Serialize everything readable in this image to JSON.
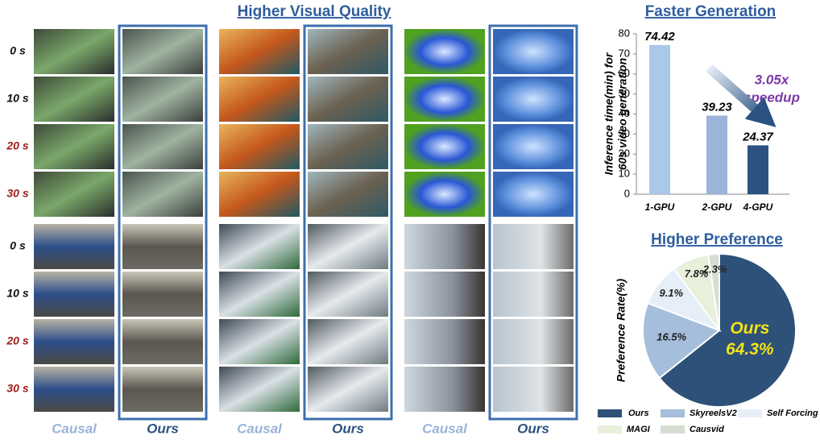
{
  "gallery": {
    "title": "Higher Visual Quality",
    "row_labels": [
      "0 s",
      "10 s",
      "20 s",
      "30 s",
      "0 s",
      "10 s",
      "20 s",
      "30 s"
    ],
    "column_labels": [
      "Causal",
      "Ours",
      "Causal",
      "Ours",
      "Causal",
      "Ours"
    ]
  },
  "chart_data": [
    {
      "type": "bar",
      "title": "Faster Generation",
      "ylabel": [
        "Inference time(min) for",
        "60s video generation"
      ],
      "categories": [
        "1-GPU",
        "2-GPU",
        "4-GPU"
      ],
      "values": [
        74.42,
        39.23,
        24.37
      ],
      "colors": [
        "#a9c8ea",
        "#9db4da",
        "#2b5280"
      ],
      "ylim": [
        0,
        80
      ],
      "yticks": [
        0,
        10,
        20,
        30,
        40,
        50,
        60,
        70,
        80
      ],
      "annotation": [
        "3.05x",
        "speedup"
      ]
    },
    {
      "type": "pie",
      "title": "Higher Preference",
      "ylabel": "Preference Rate(%)",
      "categories": [
        "Ours",
        "SkyreelsV2",
        "Self Forcing",
        "MAGI",
        "Causvid"
      ],
      "values": [
        64.3,
        16.5,
        9.1,
        7.8,
        2.3
      ],
      "value_labels": [
        "64.3%",
        "16.5%",
        "9.1%",
        "7.8%",
        "2.3%"
      ],
      "colors": [
        "#2d5178",
        "#a4bedb",
        "#e6eef8",
        "#e8f0dc",
        "#d8ddd2"
      ]
    }
  ]
}
